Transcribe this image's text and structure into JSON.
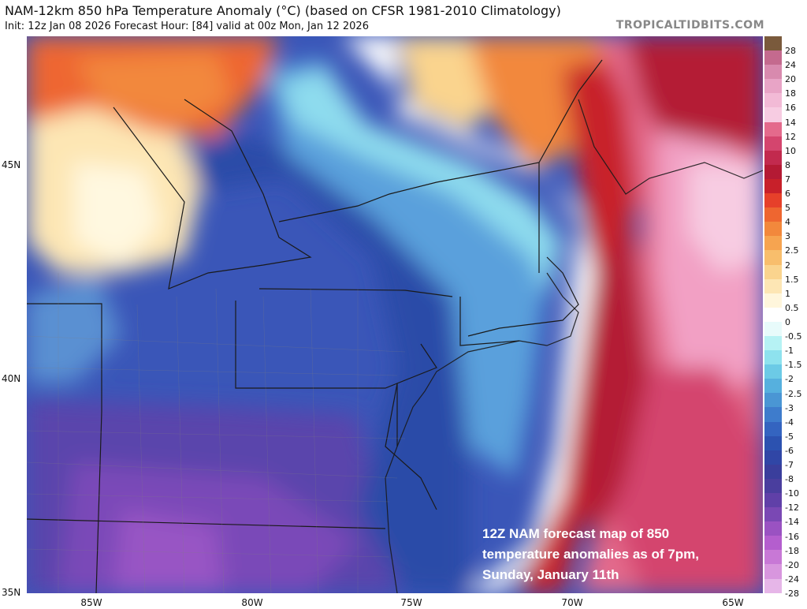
{
  "header": {
    "title": "NAM-12km 850 hPa Temperature Anomaly (°C) (based on CFSR 1981-2010 Climatology)",
    "subtitle": "Init: 12z Jan 08 2026   Forecast Hour: [84]   valid at 00z Mon, Jan 12 2026",
    "watermark": "TROPICALTIDBITS.COM"
  },
  "axes": {
    "lat_labels": [
      "45N",
      "40N",
      "35N"
    ],
    "lon_labels": [
      "85W",
      "80W",
      "75W",
      "70W",
      "65W"
    ]
  },
  "colorbar": {
    "labels": [
      "28",
      "24",
      "20",
      "18",
      "16",
      "14",
      "12",
      "10",
      "8",
      "7",
      "6",
      "5",
      "4",
      "3",
      "2.5",
      "2",
      "1.5",
      "1",
      "0.5",
      "0",
      "-0.5",
      "-1",
      "-1.5",
      "-2",
      "-2.5",
      "-3",
      "-4",
      "-5",
      "-6",
      "-7",
      "-8",
      "-10",
      "-12",
      "-14",
      "-16",
      "-18",
      "-20",
      "-24",
      "-28"
    ],
    "colors": [
      "#7a5a3c",
      "#c46a8e",
      "#d88aae",
      "#e8a4c6",
      "#f2bad6",
      "#f7cce2",
      "#e46a8c",
      "#d4456e",
      "#c22a4e",
      "#b41a34",
      "#c8202a",
      "#e6402a",
      "#ee6630",
      "#f2883c",
      "#f6a450",
      "#f8be6c",
      "#fad48e",
      "#fde6b4",
      "#fff6dc",
      "#ffffff",
      "#e8fbfb",
      "#b6f2f4",
      "#8ee2ee",
      "#6ccae6",
      "#56b0de",
      "#4a96d4",
      "#3e7ccc",
      "#3464c0",
      "#2c52b0",
      "#3046a6",
      "#3a3e9c",
      "#4a3e9e",
      "#6040a8",
      "#7a48b4",
      "#9a52c2",
      "#b45ece",
      "#c878d6",
      "#d896de",
      "#e6b6e8"
    ]
  },
  "annotation": {
    "lines": [
      "12Z NAM forecast map of 850",
      "temperature anomalies as of 7pm,",
      "Sunday, January 11th"
    ]
  }
}
